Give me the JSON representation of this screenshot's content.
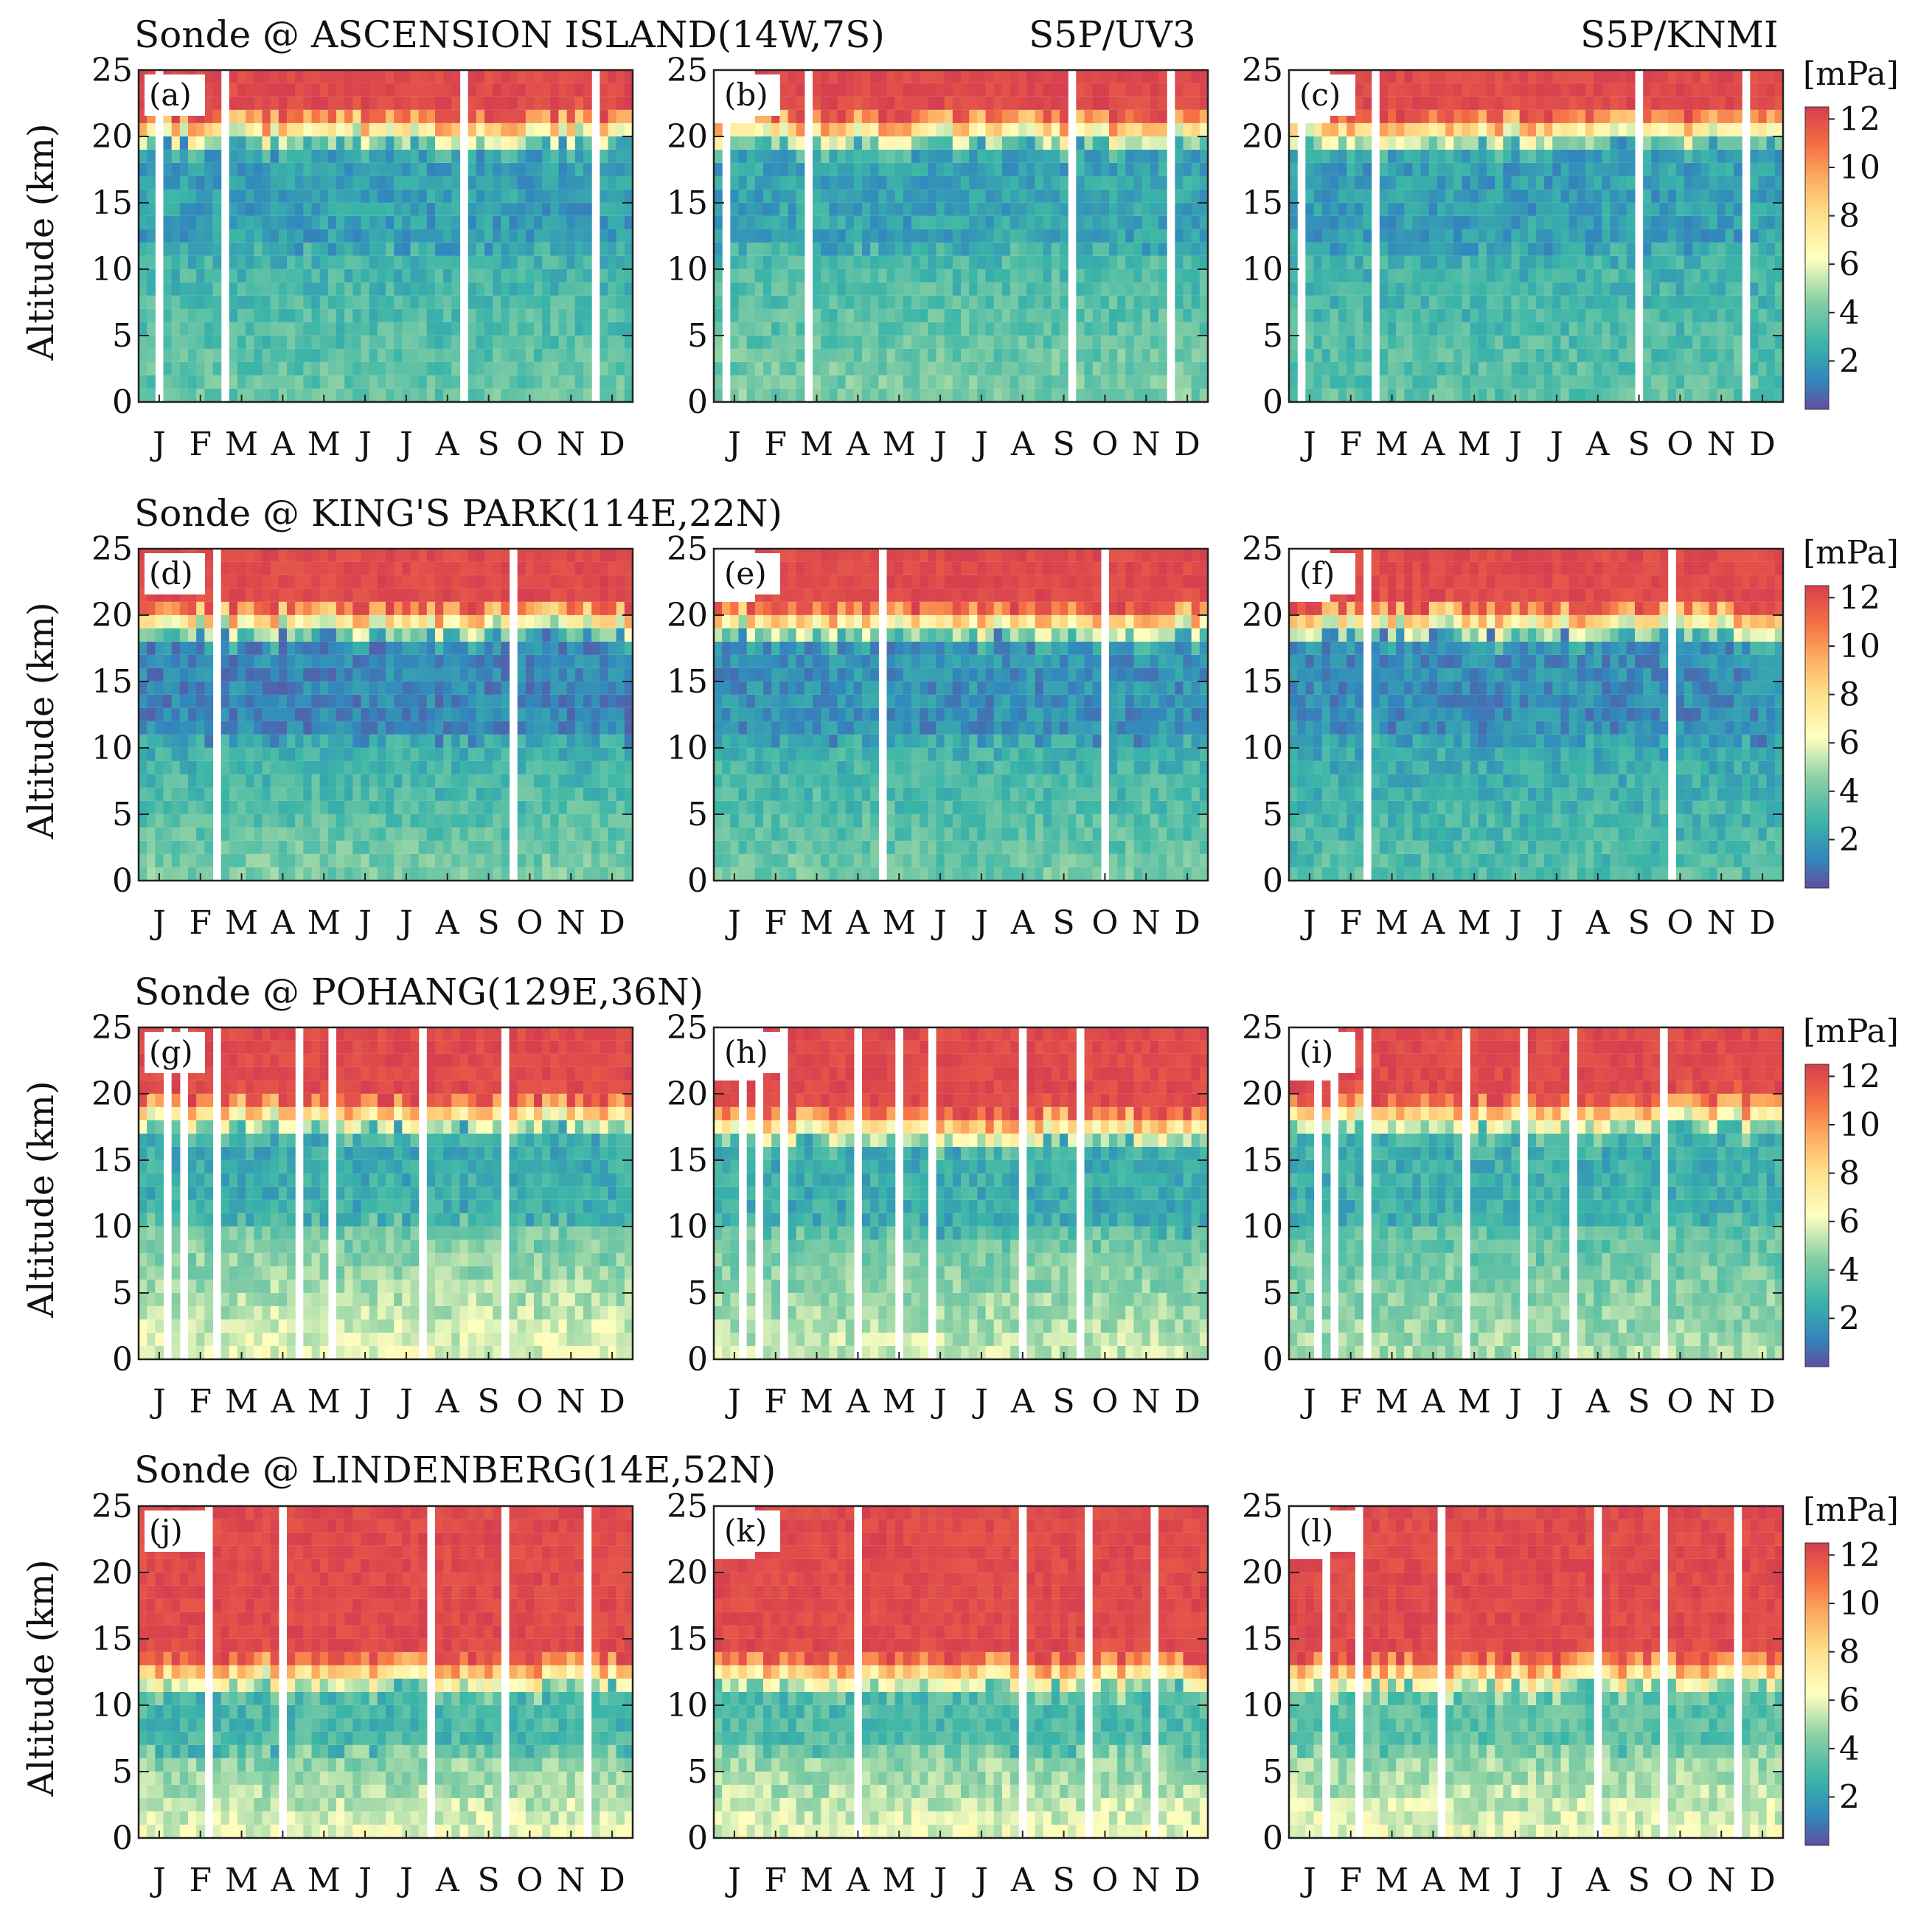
{
  "figure": {
    "column_titles": {
      "col2": "S5P/UV3",
      "col3": "S5P/KNMI"
    },
    "months": [
      "J",
      "F",
      "M",
      "A",
      "M",
      "J",
      "J",
      "A",
      "S",
      "O",
      "N",
      "D"
    ],
    "ylabel": "Altitude (km)",
    "yticks": [
      0,
      5,
      10,
      15,
      20,
      25
    ],
    "colorbar": {
      "unit": "[mPa]",
      "ticks": [
        2,
        4,
        6,
        8,
        10,
        12
      ],
      "range": [
        0,
        12.5
      ]
    },
    "colors": {
      "low": "#5e4fa2",
      "mid": "#ffffbf",
      "high": "#d53e4f"
    }
  },
  "chart_data": [
    {
      "type": "heatmap",
      "station": "ASCENSION ISLAND(14W,7S)",
      "title": "Sonde @ ASCENSION ISLAND(14W,7S)",
      "panels": [
        {
          "label": "(a)",
          "source": "Sonde",
          "gaps": [
            0.04,
            0.17,
            0.66,
            0.93
          ],
          "top_km": 25,
          "tropopause_km": 19,
          "strat_mpa": 12.5,
          "trop_low_mpa": 2.0,
          "trop_high_mpa": 3.8
        },
        {
          "label": "(b)",
          "source": "S5P/UV3",
          "gaps": [
            0.02,
            0.19,
            0.73,
            0.94
          ],
          "top_km": 25,
          "tropopause_km": 19,
          "strat_mpa": 12.5,
          "trop_low_mpa": 2.2,
          "trop_high_mpa": 4.2
        },
        {
          "label": "(c)",
          "source": "S5P/KNMI",
          "gaps": [
            0.02,
            0.17,
            0.71,
            0.93
          ],
          "top_km": 25,
          "tropopause_km": 19,
          "strat_mpa": 12.5,
          "trop_low_mpa": 2.0,
          "trop_high_mpa": 3.6
        }
      ],
      "xlabel": "",
      "ylabel": "Altitude (km)",
      "ylim": [
        0,
        25
      ],
      "colorbar_unit": "[mPa]"
    },
    {
      "type": "heatmap",
      "station": "KING'S PARK(114E,22N)",
      "title": "Sonde @ KING'S PARK(114E,22N)",
      "panels": [
        {
          "label": "(d)",
          "source": "Sonde",
          "gaps": [
            0.16,
            0.76
          ],
          "top_km": 25,
          "tropopause_km": 18,
          "strat_mpa": 12.5,
          "trop_low_mpa": 1.3,
          "trop_high_mpa": 4.2
        },
        {
          "label": "(e)",
          "source": "S5P/UV3",
          "gaps": [
            0.34,
            0.79
          ],
          "top_km": 25,
          "tropopause_km": 18,
          "strat_mpa": 12.5,
          "trop_low_mpa": 1.6,
          "trop_high_mpa": 4.0
        },
        {
          "label": "(f)",
          "source": "S5P/KNMI",
          "gaps": [
            0.16,
            0.78
          ],
          "top_km": 25,
          "tropopause_km": 18,
          "strat_mpa": 12.5,
          "trop_low_mpa": 1.5,
          "trop_high_mpa": 3.4
        }
      ],
      "xlabel": "",
      "ylabel": "Altitude (km)",
      "ylim": [
        0,
        25
      ],
      "colorbar_unit": "[mPa]"
    },
    {
      "type": "heatmap",
      "station": "POHANG(129E,36N)",
      "title": "Sonde @ POHANG(129E,36N)",
      "panels": [
        {
          "label": "(g)",
          "source": "Sonde",
          "gaps": [
            0.05,
            0.09,
            0.15,
            0.32,
            0.39,
            0.57,
            0.74
          ],
          "top_km": 25,
          "tropopause_km": 17,
          "strat_mpa": 12.5,
          "trop_low_mpa": 2.5,
          "trop_high_mpa": 6.0
        },
        {
          "label": "(h)",
          "source": "S5P/UV3",
          "gaps": [
            0.05,
            0.09,
            0.14,
            0.28,
            0.37,
            0.44,
            0.62,
            0.75
          ],
          "top_km": 25,
          "tropopause_km": 16,
          "strat_mpa": 12.5,
          "trop_low_mpa": 2.5,
          "trop_high_mpa": 5.5
        },
        {
          "label": "(i)",
          "source": "S5P/KNMI",
          "gaps": [
            0.05,
            0.09,
            0.15,
            0.36,
            0.47,
            0.58,
            0.76
          ],
          "top_km": 25,
          "tropopause_km": 17,
          "strat_mpa": 12.5,
          "trop_low_mpa": 2.6,
          "trop_high_mpa": 5.0
        }
      ],
      "xlabel": "",
      "ylabel": "Altitude (km)",
      "ylim": [
        0,
        25
      ],
      "colorbar_unit": "[mPa]"
    },
    {
      "type": "heatmap",
      "station": "LINDENBERG(14E,52N)",
      "title": "Sonde @ LINDENBERG(14E,52N)",
      "panels": [
        {
          "label": "(j)",
          "source": "Sonde",
          "gaps": [
            0.14,
            0.29,
            0.6,
            0.75,
            0.92
          ],
          "top_km": 25,
          "tropopause_km": 11,
          "strat_mpa": 12.5,
          "trop_low_mpa": 3.0,
          "trop_high_mpa": 6.0
        },
        {
          "label": "(k)",
          "source": "S5P/UV3",
          "gaps": [
            0.28,
            0.62,
            0.76,
            0.89
          ],
          "top_km": 25,
          "tropopause_km": 11,
          "strat_mpa": 12.5,
          "trop_low_mpa": 3.2,
          "trop_high_mpa": 6.0
        },
        {
          "label": "(l)",
          "source": "S5P/KNMI",
          "gaps": [
            0.07,
            0.14,
            0.3,
            0.62,
            0.77,
            0.91
          ],
          "top_km": 25,
          "tropopause_km": 11,
          "strat_mpa": 12.5,
          "trop_low_mpa": 3.5,
          "trop_high_mpa": 6.0
        }
      ],
      "xlabel": "",
      "ylabel": "Altitude (km)",
      "ylim": [
        0,
        25
      ],
      "colorbar_unit": "[mPa]"
    }
  ]
}
